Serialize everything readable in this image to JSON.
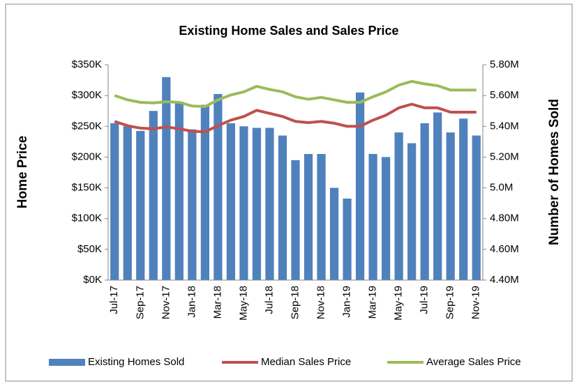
{
  "chart_data": {
    "type": "bar_line",
    "title": "Existing Home Sales and Sales Price",
    "ylabel": "Home Price",
    "y2label": "Number of Homes Sold",
    "categories": [
      "Jul-17",
      null,
      "Sep-17",
      null,
      "Nov-17",
      null,
      "Jan-18",
      null,
      "Mar-18",
      null,
      "May-18",
      null,
      "Jul-18",
      null,
      "Sep-18",
      null,
      "Nov-18",
      null,
      "Jan-19",
      null,
      "Mar-19",
      null,
      "May-19",
      null,
      "Jul-19",
      null,
      "Sep-19",
      null,
      "Nov-19"
    ],
    "series": [
      {
        "name": "Existing Homes Sold",
        "type": "bar",
        "axis": "y2",
        "color": "#4f81bd",
        "values": [
          5420000,
          5400000,
          5370000,
          5500000,
          5720000,
          5560000,
          5380000,
          5540000,
          5610000,
          5420000,
          5400000,
          5390000,
          5390000,
          5340000,
          5180000,
          5220000,
          5220000,
          5000000,
          4930000,
          5620000,
          5220000,
          5200000,
          5360000,
          5290000,
          5420000,
          5490000,
          5360000,
          5450000,
          5340000
        ]
      },
      {
        "name": "Median Sales Price",
        "type": "line",
        "color": "#c0504d",
        "values": [
          258000,
          251000,
          247000,
          246000,
          249000,
          246000,
          242000,
          241000,
          251000,
          260000,
          266000,
          276000,
          271000,
          266000,
          258000,
          256000,
          258000,
          255000,
          250000,
          250000,
          260000,
          268000,
          280000,
          286000,
          280000,
          280000,
          273000,
          273000,
          273000
        ]
      },
      {
        "name": "Average Sales Price",
        "type": "line",
        "color": "#9bbb59",
        "values": [
          300000,
          293000,
          289000,
          288000,
          290000,
          289000,
          283000,
          282000,
          293000,
          301000,
          306000,
          315000,
          310000,
          306000,
          298000,
          294000,
          297000,
          293000,
          289000,
          289000,
          298000,
          306000,
          317000,
          323000,
          319000,
          316000,
          309000,
          309000,
          309000
        ]
      }
    ],
    "ylim": [
      0,
      350000
    ],
    "yticks": [
      {
        "value": 0,
        "label": "$0K"
      },
      {
        "value": 50000,
        "label": "$50K"
      },
      {
        "value": 100000,
        "label": "$100K"
      },
      {
        "value": 150000,
        "label": "$150K"
      },
      {
        "value": 200000,
        "label": "$200K"
      },
      {
        "value": 250000,
        "label": "$250K"
      },
      {
        "value": 300000,
        "label": "$300K"
      },
      {
        "value": 350000,
        "label": "$350K"
      }
    ],
    "y2lim": [
      4400000,
      5800000
    ],
    "y2ticks": [
      {
        "value": 4400000,
        "label": "4.40M"
      },
      {
        "value": 4600000,
        "label": "4.60M"
      },
      {
        "value": 4800000,
        "label": "4.80M"
      },
      {
        "value": 5000000,
        "label": "5.0M"
      },
      {
        "value": 5200000,
        "label": "5.20M"
      },
      {
        "value": 5400000,
        "label": "5.40M"
      },
      {
        "value": 5600000,
        "label": "5.60M"
      },
      {
        "value": 5800000,
        "label": "5.80M"
      }
    ],
    "legend": "bottom"
  }
}
